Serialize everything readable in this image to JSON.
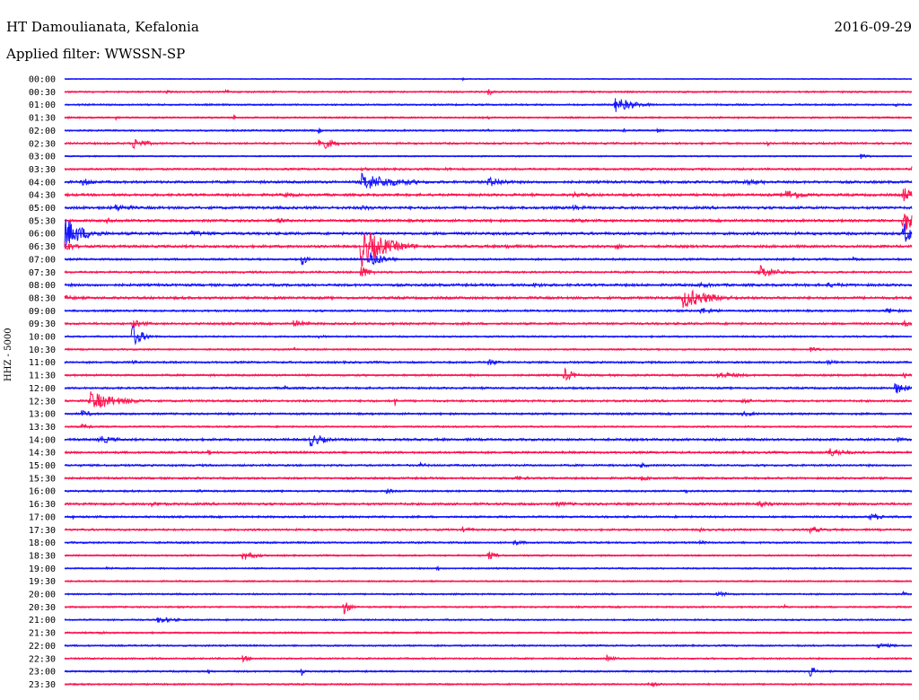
{
  "header": {
    "station": "HT Damoulianata, Kefalonia",
    "date": "2016-09-29",
    "filter": "Applied filter: WWSSN-SP"
  },
  "colors": {
    "blue": "#1414ff",
    "red": "#ff1450"
  },
  "chart_data": {
    "type": "line",
    "title": "HT Damoulianata, Kefalonia",
    "ylabel": "HHZ - 5000",
    "grid": false,
    "legend": "none",
    "rows": [
      {
        "label": "00:00",
        "color": "blue",
        "amp": 0.6,
        "events": [
          {
            "pos": 0.47,
            "amp": 1.5,
            "len": 0.01
          }
        ]
      },
      {
        "label": "00:30",
        "color": "red",
        "amp": 1.0,
        "events": [
          {
            "pos": 0.5,
            "amp": 5,
            "len": 0.01
          },
          {
            "pos": 0.12,
            "amp": 2,
            "len": 0.02
          },
          {
            "pos": 0.19,
            "amp": 2,
            "len": 0.02
          }
        ]
      },
      {
        "label": "01:00",
        "color": "blue",
        "amp": 1.0,
        "events": [
          {
            "pos": 0.65,
            "amp": 9,
            "len": 0.04
          },
          {
            "pos": 0.98,
            "amp": 2,
            "len": 0.02
          }
        ]
      },
      {
        "label": "01:30",
        "color": "red",
        "amp": 1.0,
        "events": [
          {
            "pos": 0.06,
            "amp": 3,
            "len": 0.01
          },
          {
            "pos": 0.2,
            "amp": 4,
            "len": 0.005
          },
          {
            "pos": 0.5,
            "amp": 2,
            "len": 0.01
          }
        ]
      },
      {
        "label": "02:00",
        "color": "blue",
        "amp": 1.0,
        "events": [
          {
            "pos": 0.3,
            "amp": 4,
            "len": 0.005
          },
          {
            "pos": 0.5,
            "amp": 3,
            "len": 0.005
          },
          {
            "pos": 0.66,
            "amp": 4,
            "len": 0.005
          },
          {
            "pos": 0.7,
            "amp": 3,
            "len": 0.01
          }
        ]
      },
      {
        "label": "02:30",
        "color": "red",
        "amp": 1.2,
        "events": [
          {
            "pos": 0.08,
            "amp": 7,
            "len": 0.03
          },
          {
            "pos": 0.3,
            "amp": 9,
            "len": 0.03
          },
          {
            "pos": 0.83,
            "amp": 3,
            "len": 0.005
          }
        ]
      },
      {
        "label": "03:00",
        "color": "blue",
        "amp": 0.8,
        "events": [
          {
            "pos": 0.94,
            "amp": 3,
            "len": 0.02
          }
        ]
      },
      {
        "label": "03:30",
        "color": "red",
        "amp": 1.2,
        "events": [
          {
            "pos": 0.35,
            "amp": 2,
            "len": 0.04
          },
          {
            "pos": 0.45,
            "amp": 2,
            "len": 0.04
          },
          {
            "pos": 1.0,
            "amp": 5,
            "len": 0.01
          }
        ]
      },
      {
        "label": "04:00",
        "color": "blue",
        "amp": 1.5,
        "events": [
          {
            "pos": 0.02,
            "amp": 5,
            "len": 0.03
          },
          {
            "pos": 0.35,
            "amp": 10,
            "len": 0.08
          },
          {
            "pos": 0.5,
            "amp": 6,
            "len": 0.04
          },
          {
            "pos": 0.8,
            "amp": 3,
            "len": 0.1
          }
        ]
      },
      {
        "label": "04:30",
        "color": "red",
        "amp": 1.5,
        "events": [
          {
            "pos": 0.26,
            "amp": 3,
            "len": 0.04
          },
          {
            "pos": 0.6,
            "amp": 3,
            "len": 0.06
          },
          {
            "pos": 0.85,
            "amp": 6,
            "len": 0.05
          },
          {
            "pos": 0.99,
            "amp": 10,
            "len": 0.02
          }
        ]
      },
      {
        "label": "05:00",
        "color": "blue",
        "amp": 1.6,
        "events": [
          {
            "pos": 0.06,
            "amp": 4,
            "len": 0.05
          },
          {
            "pos": 0.35,
            "amp": 3,
            "len": 0.05
          },
          {
            "pos": 0.6,
            "amp": 3,
            "len": 0.06
          }
        ]
      },
      {
        "label": "05:30",
        "color": "red",
        "amp": 1.5,
        "events": [
          {
            "pos": 0.05,
            "amp": 3,
            "len": 0.05
          },
          {
            "pos": 0.25,
            "amp": 3,
            "len": 0.04
          },
          {
            "pos": 0.6,
            "amp": 3,
            "len": 0.04
          },
          {
            "pos": 0.99,
            "amp": 16,
            "len": 0.02
          }
        ]
      },
      {
        "label": "06:00",
        "color": "blue",
        "amp": 1.6,
        "events": [
          {
            "pos": 0.0,
            "amp": 18,
            "len": 0.04
          },
          {
            "pos": 0.15,
            "amp": 3,
            "len": 0.08
          },
          {
            "pos": 0.99,
            "amp": 14,
            "len": 0.02
          }
        ]
      },
      {
        "label": "06:30",
        "color": "red",
        "amp": 1.5,
        "events": [
          {
            "pos": 0.0,
            "amp": 8,
            "len": 0.02
          },
          {
            "pos": 0.35,
            "amp": 24,
            "len": 0.05
          },
          {
            "pos": 0.52,
            "amp": 3,
            "len": 0.04
          },
          {
            "pos": 0.65,
            "amp": 4,
            "len": 0.02
          }
        ]
      },
      {
        "label": "07:00",
        "color": "blue",
        "amp": 1.2,
        "events": [
          {
            "pos": 0.28,
            "amp": 9,
            "len": 0.01
          },
          {
            "pos": 0.36,
            "amp": 10,
            "len": 0.03
          },
          {
            "pos": 0.93,
            "amp": 5,
            "len": 0.01
          }
        ]
      },
      {
        "label": "07:30",
        "color": "red",
        "amp": 1.2,
        "events": [
          {
            "pos": 0.35,
            "amp": 8,
            "len": 0.02
          },
          {
            "pos": 0.82,
            "amp": 8,
            "len": 0.04
          }
        ]
      },
      {
        "label": "08:00",
        "color": "blue",
        "amp": 1.5,
        "events": [
          {
            "pos": 0.55,
            "amp": 3,
            "len": 0.06
          },
          {
            "pos": 0.75,
            "amp": 3,
            "len": 0.05
          },
          {
            "pos": 0.9,
            "amp": 3,
            "len": 0.06
          }
        ]
      },
      {
        "label": "08:30",
        "color": "red",
        "amp": 1.5,
        "events": [
          {
            "pos": 0.0,
            "amp": 3,
            "len": 0.04
          },
          {
            "pos": 0.73,
            "amp": 12,
            "len": 0.06
          },
          {
            "pos": 0.98,
            "amp": 2,
            "len": 0.02
          }
        ]
      },
      {
        "label": "09:00",
        "color": "blue",
        "amp": 1.2,
        "events": [
          {
            "pos": 0.75,
            "amp": 4,
            "len": 0.04
          },
          {
            "pos": 0.97,
            "amp": 3,
            "len": 0.04
          }
        ]
      },
      {
        "label": "09:30",
        "color": "red",
        "amp": 1.3,
        "events": [
          {
            "pos": 0.08,
            "amp": 5,
            "len": 0.03
          },
          {
            "pos": 0.27,
            "amp": 4,
            "len": 0.04
          },
          {
            "pos": 0.99,
            "amp": 4,
            "len": 0.02
          }
        ]
      },
      {
        "label": "10:00",
        "color": "blue",
        "amp": 1.0,
        "events": [
          {
            "pos": 0.08,
            "amp": 14,
            "len": 0.02
          },
          {
            "pos": 0.3,
            "amp": 2,
            "len": 0.03
          }
        ]
      },
      {
        "label": "10:30",
        "color": "red",
        "amp": 1.0,
        "events": [
          {
            "pos": 0.27,
            "amp": 3,
            "len": 0.01
          },
          {
            "pos": 0.88,
            "amp": 3,
            "len": 0.03
          }
        ]
      },
      {
        "label": "11:00",
        "color": "blue",
        "amp": 1.2,
        "events": [
          {
            "pos": 0.08,
            "amp": 3,
            "len": 0.02
          },
          {
            "pos": 0.5,
            "amp": 4,
            "len": 0.03
          },
          {
            "pos": 0.9,
            "amp": 3,
            "len": 0.03
          }
        ]
      },
      {
        "label": "11:30",
        "color": "red",
        "amp": 1.2,
        "events": [
          {
            "pos": 0.59,
            "amp": 8,
            "len": 0.02
          },
          {
            "pos": 0.77,
            "amp": 4,
            "len": 0.06
          },
          {
            "pos": 0.99,
            "amp": 6,
            "len": 0.01
          }
        ]
      },
      {
        "label": "12:00",
        "color": "blue",
        "amp": 1.2,
        "events": [
          {
            "pos": 0.26,
            "amp": 3,
            "len": 0.02
          },
          {
            "pos": 0.98,
            "amp": 7,
            "len": 0.03
          }
        ]
      },
      {
        "label": "12:30",
        "color": "red",
        "amp": 1.3,
        "events": [
          {
            "pos": 0.03,
            "amp": 11,
            "len": 0.06
          },
          {
            "pos": 0.39,
            "amp": 6,
            "len": 0.005
          },
          {
            "pos": 0.8,
            "amp": 3,
            "len": 0.03
          }
        ]
      },
      {
        "label": "13:00",
        "color": "blue",
        "amp": 1.2,
        "events": [
          {
            "pos": 0.02,
            "amp": 4,
            "len": 0.03
          },
          {
            "pos": 0.8,
            "amp": 3,
            "len": 0.04
          }
        ]
      },
      {
        "label": "13:30",
        "color": "red",
        "amp": 1.0,
        "events": [
          {
            "pos": 0.02,
            "amp": 3,
            "len": 0.03
          }
        ]
      },
      {
        "label": "14:00",
        "color": "blue",
        "amp": 1.4,
        "events": [
          {
            "pos": 0.04,
            "amp": 5,
            "len": 0.04
          },
          {
            "pos": 0.29,
            "amp": 8,
            "len": 0.03
          },
          {
            "pos": 0.98,
            "amp": 4,
            "len": 0.02
          }
        ]
      },
      {
        "label": "14:30",
        "color": "red",
        "amp": 1.3,
        "events": [
          {
            "pos": 0.17,
            "amp": 4,
            "len": 0.005
          },
          {
            "pos": 0.9,
            "amp": 6,
            "len": 0.04
          }
        ]
      },
      {
        "label": "15:00",
        "color": "blue",
        "amp": 1.2,
        "events": [
          {
            "pos": 0.42,
            "amp": 3,
            "len": 0.02
          },
          {
            "pos": 0.68,
            "amp": 3,
            "len": 0.02
          }
        ]
      },
      {
        "label": "15:30",
        "color": "red",
        "amp": 1.2,
        "events": [
          {
            "pos": 0.53,
            "amp": 3,
            "len": 0.04
          },
          {
            "pos": 0.68,
            "amp": 3,
            "len": 0.03
          }
        ]
      },
      {
        "label": "16:00",
        "color": "blue",
        "amp": 1.1,
        "events": [
          {
            "pos": 0.16,
            "amp": 4,
            "len": 0.005
          },
          {
            "pos": 0.38,
            "amp": 3,
            "len": 0.02
          },
          {
            "pos": 0.73,
            "amp": 3,
            "len": 0.02
          }
        ]
      },
      {
        "label": "16:30",
        "color": "red",
        "amp": 1.4,
        "events": [
          {
            "pos": 0.1,
            "amp": 3,
            "len": 0.05
          },
          {
            "pos": 0.58,
            "amp": 3,
            "len": 0.05
          },
          {
            "pos": 0.82,
            "amp": 3,
            "len": 0.05
          }
        ]
      },
      {
        "label": "17:00",
        "color": "blue",
        "amp": 1.2,
        "events": [
          {
            "pos": 0.01,
            "amp": 3,
            "len": 0.005
          },
          {
            "pos": 0.95,
            "amp": 4,
            "len": 0.04
          }
        ]
      },
      {
        "label": "17:30",
        "color": "red",
        "amp": 1.2,
        "events": [
          {
            "pos": 0.47,
            "amp": 3,
            "len": 0.03
          },
          {
            "pos": 0.75,
            "amp": 4,
            "len": 0.005
          },
          {
            "pos": 0.88,
            "amp": 4,
            "len": 0.03
          }
        ]
      },
      {
        "label": "18:00",
        "color": "blue",
        "amp": 1.1,
        "events": [
          {
            "pos": 0.53,
            "amp": 3,
            "len": 0.03
          },
          {
            "pos": 0.75,
            "amp": 2,
            "len": 0.03
          }
        ]
      },
      {
        "label": "18:30",
        "color": "red",
        "amp": 1.0,
        "events": [
          {
            "pos": 0.21,
            "amp": 6,
            "len": 0.03
          },
          {
            "pos": 0.5,
            "amp": 5,
            "len": 0.02
          }
        ]
      },
      {
        "label": "19:00",
        "color": "blue",
        "amp": 0.9,
        "events": [
          {
            "pos": 0.05,
            "amp": 3,
            "len": 0.01
          },
          {
            "pos": 0.44,
            "amp": 5,
            "len": 0.005
          }
        ]
      },
      {
        "label": "19:30",
        "color": "red",
        "amp": 0.9,
        "events": []
      },
      {
        "label": "20:00",
        "color": "blue",
        "amp": 1.0,
        "events": [
          {
            "pos": 0.77,
            "amp": 3,
            "len": 0.04
          },
          {
            "pos": 0.99,
            "amp": 3,
            "len": 0.01
          }
        ]
      },
      {
        "label": "20:30",
        "color": "red",
        "amp": 1.0,
        "events": [
          {
            "pos": 0.33,
            "amp": 12,
            "len": 0.01
          },
          {
            "pos": 0.85,
            "amp": 3,
            "len": 0.01
          }
        ]
      },
      {
        "label": "21:00",
        "color": "blue",
        "amp": 1.0,
        "events": [
          {
            "pos": 0.11,
            "amp": 4,
            "len": 0.04
          }
        ]
      },
      {
        "label": "21:30",
        "color": "red",
        "amp": 1.0,
        "events": [
          {
            "pos": 0.04,
            "amp": 2,
            "len": 0.03
          }
        ]
      },
      {
        "label": "22:00",
        "color": "blue",
        "amp": 1.0,
        "events": [
          {
            "pos": 0.96,
            "amp": 3,
            "len": 0.04
          }
        ]
      },
      {
        "label": "22:30",
        "color": "red",
        "amp": 1.0,
        "events": [
          {
            "pos": 0.21,
            "amp": 4,
            "len": 0.02
          },
          {
            "pos": 0.64,
            "amp": 4,
            "len": 0.02
          }
        ]
      },
      {
        "label": "23:00",
        "color": "blue",
        "amp": 1.0,
        "events": [
          {
            "pos": 0.17,
            "amp": 4,
            "len": 0.005
          },
          {
            "pos": 0.28,
            "amp": 5,
            "len": 0.005
          },
          {
            "pos": 0.88,
            "amp": 8,
            "len": 0.01
          }
        ]
      },
      {
        "label": "23:30",
        "color": "red",
        "amp": 1.0,
        "events": [
          {
            "pos": 0.69,
            "amp": 3,
            "len": 0.03
          }
        ]
      }
    ]
  }
}
